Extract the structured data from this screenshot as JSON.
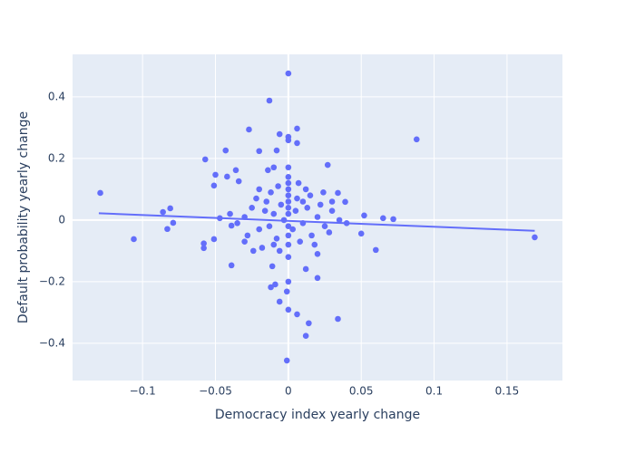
{
  "chart_data": {
    "type": "scatter",
    "x_label": "Democracy index yearly change",
    "y_label": "Default probability yearly change",
    "xlim": [
      -0.148,
      0.188
    ],
    "ylim": [
      -0.521,
      0.538
    ],
    "xticks": [
      {
        "value": -0.1,
        "label": "−0.1"
      },
      {
        "value": -0.05,
        "label": "−0.05"
      },
      0,
      0.05,
      0.1,
      0.15
    ],
    "yticks": [
      {
        "value": -0.4,
        "label": "−0.4"
      },
      {
        "value": -0.2,
        "label": "−0.2"
      },
      0,
      0.2,
      0.4
    ],
    "grid": true,
    "series": [
      {
        "color": "#636efa",
        "mode": "markers",
        "x": [
          0,
          -0.013,
          0.006,
          -0.027,
          0,
          0,
          0.088,
          -0.006,
          0.006,
          -0.043,
          -0.008,
          -0.02,
          -0.057,
          0.027,
          -0.036,
          -0.01,
          -0.014,
          0,
          -0.05,
          -0.042,
          -0.129,
          -0.051,
          -0.034,
          0.034,
          0.039,
          -0.086,
          -0.081,
          -0.079,
          -0.083,
          -0.106,
          -0.058,
          -0.058,
          -0.051,
          -0.047,
          -0.039,
          0.052,
          0.065,
          0.072,
          0.05,
          0.06,
          0.169,
          -0.039,
          -0.011,
          0.012,
          0.02,
          -0.012,
          -0.009,
          0,
          -0.001,
          -0.006,
          0,
          0.006,
          0.034,
          0.014,
          0.012,
          -0.001,
          0,
          0,
          0,
          0,
          0,
          0,
          0,
          0,
          0,
          0,
          0,
          -0.005,
          0.005,
          -0.01,
          0.01,
          -0.015,
          0.015,
          -0.02,
          0.02,
          -0.025,
          0.025,
          -0.03,
          0.03,
          -0.008,
          0.008,
          -0.012,
          0.012,
          -0.018,
          0.018,
          -0.022,
          0.022,
          -0.028,
          0.028,
          -0.003,
          0.003,
          -0.007,
          0.007,
          -0.016,
          0.016,
          -0.035,
          0.035,
          -0.04,
          0.04,
          -0.024,
          0.024,
          -0.013,
          0.013,
          -0.006,
          0.006,
          -0.03,
          0.03,
          -0.02,
          0.02,
          -0.01,
          0.01
        ],
        "values": [
          0.476,
          0.388,
          0.297,
          0.294,
          0.27,
          0.259,
          0.262,
          0.279,
          0.25,
          0.226,
          0.226,
          0.224,
          0.197,
          0.179,
          0.162,
          0.171,
          0.162,
          0.171,
          0.147,
          0.141,
          0.088,
          0.112,
          0.126,
          0.088,
          0.059,
          0.026,
          0.038,
          -0.009,
          -0.029,
          -0.062,
          -0.076,
          -0.091,
          -0.062,
          0.006,
          -0.018,
          0.015,
          0.006,
          0.003,
          -0.044,
          -0.097,
          -0.056,
          -0.147,
          -0.15,
          -0.159,
          -0.188,
          -0.218,
          -0.209,
          -0.2,
          -0.232,
          -0.265,
          -0.291,
          -0.306,
          -0.321,
          -0.335,
          -0.376,
          -0.456,
          0.14,
          0.12,
          0.1,
          0.08,
          0.06,
          0.04,
          0.02,
          -0.02,
          -0.05,
          -0.08,
          -0.12,
          0.05,
          0.03,
          0.02,
          -0.01,
          0.06,
          0.08,
          -0.03,
          0.01,
          0.04,
          -0.02,
          0.01,
          0.03,
          -0.06,
          -0.07,
          0.09,
          0.1,
          -0.09,
          -0.08,
          0.07,
          0.05,
          -0.05,
          -0.04,
          0,
          -0.03,
          0.11,
          0.12,
          0.03,
          -0.05,
          -0.01,
          0,
          0.02,
          -0.01,
          -0.1,
          0.09,
          -0.02,
          0.04,
          -0.1,
          0.07,
          -0.07,
          0.06,
          0.1,
          -0.11,
          -0.08,
          0.06
        ]
      },
      {
        "color": "#636efa",
        "mode": "lines",
        "x": [
          -0.13,
          0.169
        ],
        "values": [
          0.022,
          -0.035
        ]
      }
    ]
  }
}
